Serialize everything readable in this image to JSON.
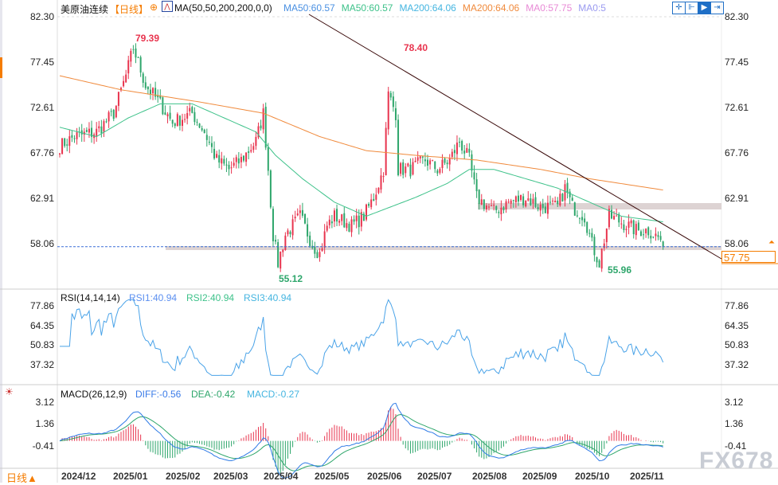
{
  "header": {
    "symbol": "美原油连续",
    "period": "【日线】",
    "indicator": "MA(50,50,200,200,0,0)",
    "ma": [
      {
        "label": "MA50:60.57",
        "color": "#4a90e2"
      },
      {
        "label": "MA50:60.57",
        "color": "#3ec28a"
      },
      {
        "label": "MA200:64.06",
        "color": "#45b5e0"
      },
      {
        "label": "MA200:64.06",
        "color": "#f08a3c"
      },
      {
        "label": "MA0:57.75",
        "color": "#e88ad6"
      },
      {
        "label": "MA0:5",
        "color": "#9a9af0"
      }
    ],
    "tools": [
      "crosshair-icon",
      "range-icon",
      "play-icon",
      "go-end-icon"
    ]
  },
  "price_axis": [
    "82.30",
    "77.45",
    "72.61",
    "67.76",
    "62.91",
    "58.06"
  ],
  "current_price": "57.75",
  "annotations": {
    "high1": "79.39",
    "high2": "78.40",
    "low1": "55.12",
    "low2": "55.96"
  },
  "rsi": {
    "title": "RSI(14,14,14)",
    "rsi1": "RSI1:40.94",
    "rsi2": "RSI2:40.94",
    "rsi3": "RSI3:40.94",
    "axis": [
      "77.86",
      "64.35",
      "50.83",
      "37.32"
    ]
  },
  "macd": {
    "title": "MACD(26,12,9)",
    "diff": "DIFF:-0.56",
    "dea": "DEA:-0.42",
    "macd": "MACD:-0.27",
    "axis": [
      "3.12",
      "1.36",
      "-0.41"
    ]
  },
  "x_axis": [
    "2024/12",
    "2025/01",
    "2025/02",
    "2025/03",
    "2025/04",
    "2025/05",
    "2025/06",
    "2025/07",
    "2025/08",
    "2025/09",
    "2025/10",
    "2025/11"
  ],
  "period_button": "日线▲",
  "watermark": "FX678",
  "colors": {
    "up": "#e8344e",
    "down": "#2ea66b",
    "accent": "#f57c00"
  },
  "chart_data": {
    "type": "candlestick",
    "ylim": [
      55,
      82.3
    ],
    "close_path": [
      [
        0,
        68.5
      ],
      [
        6,
        69.5
      ],
      [
        15,
        70
      ],
      [
        22,
        72
      ],
      [
        27,
        76
      ],
      [
        30,
        79
      ],
      [
        35,
        75
      ],
      [
        41,
        73
      ],
      [
        46,
        71
      ],
      [
        54,
        72
      ],
      [
        59,
        70
      ],
      [
        64,
        67
      ],
      [
        69,
        66
      ],
      [
        74,
        67
      ],
      [
        80,
        69
      ],
      [
        83,
        72
      ],
      [
        85,
        66
      ],
      [
        87,
        59
      ],
      [
        89,
        56
      ],
      [
        92,
        59
      ],
      [
        98,
        61
      ],
      [
        103,
        58
      ],
      [
        106,
        57
      ],
      [
        109,
        60
      ],
      [
        112,
        61
      ],
      [
        119,
        60
      ],
      [
        124,
        61
      ],
      [
        128,
        63
      ],
      [
        132,
        66
      ],
      [
        134,
        74
      ],
      [
        137,
        72
      ],
      [
        138,
        66
      ],
      [
        143,
        66
      ],
      [
        149,
        67
      ],
      [
        154,
        66
      ],
      [
        159,
        67
      ],
      [
        163,
        69
      ],
      [
        167,
        67
      ],
      [
        170,
        63
      ],
      [
        177,
        61.5
      ],
      [
        183,
        62.5
      ],
      [
        190,
        63
      ],
      [
        196,
        62
      ],
      [
        203,
        62
      ],
      [
        206,
        64
      ],
      [
        209,
        62
      ],
      [
        214,
        61
      ],
      [
        217,
        58
      ],
      [
        220,
        56
      ],
      [
        224,
        61
      ],
      [
        228,
        60.5
      ],
      [
        235,
        59.5
      ],
      [
        240,
        59.5
      ],
      [
        245,
        58.5
      ],
      [
        246,
        57.75
      ]
    ],
    "ma50_path": [
      [
        0,
        70.5
      ],
      [
        15,
        69.5
      ],
      [
        28,
        71.5
      ],
      [
        41,
        73
      ],
      [
        54,
        73
      ],
      [
        67,
        71.5
      ],
      [
        80,
        70
      ],
      [
        88,
        67.5
      ],
      [
        99,
        65
      ],
      [
        112,
        62.5
      ],
      [
        125,
        61
      ],
      [
        135,
        62
      ],
      [
        145,
        63
      ],
      [
        158,
        64.5
      ],
      [
        167,
        66
      ],
      [
        177,
        66
      ],
      [
        190,
        65
      ],
      [
        203,
        64
      ],
      [
        216,
        62.5
      ],
      [
        229,
        61
      ],
      [
        246,
        60.4
      ]
    ],
    "ma200_path": [
      [
        0,
        76
      ],
      [
        25,
        74.5
      ],
      [
        57,
        73.2
      ],
      [
        83,
        72
      ],
      [
        106,
        69.5
      ],
      [
        125,
        68
      ],
      [
        145,
        67.5
      ],
      [
        170,
        67
      ],
      [
        196,
        66
      ],
      [
        216,
        65
      ],
      [
        246,
        63.8
      ]
    ]
  }
}
